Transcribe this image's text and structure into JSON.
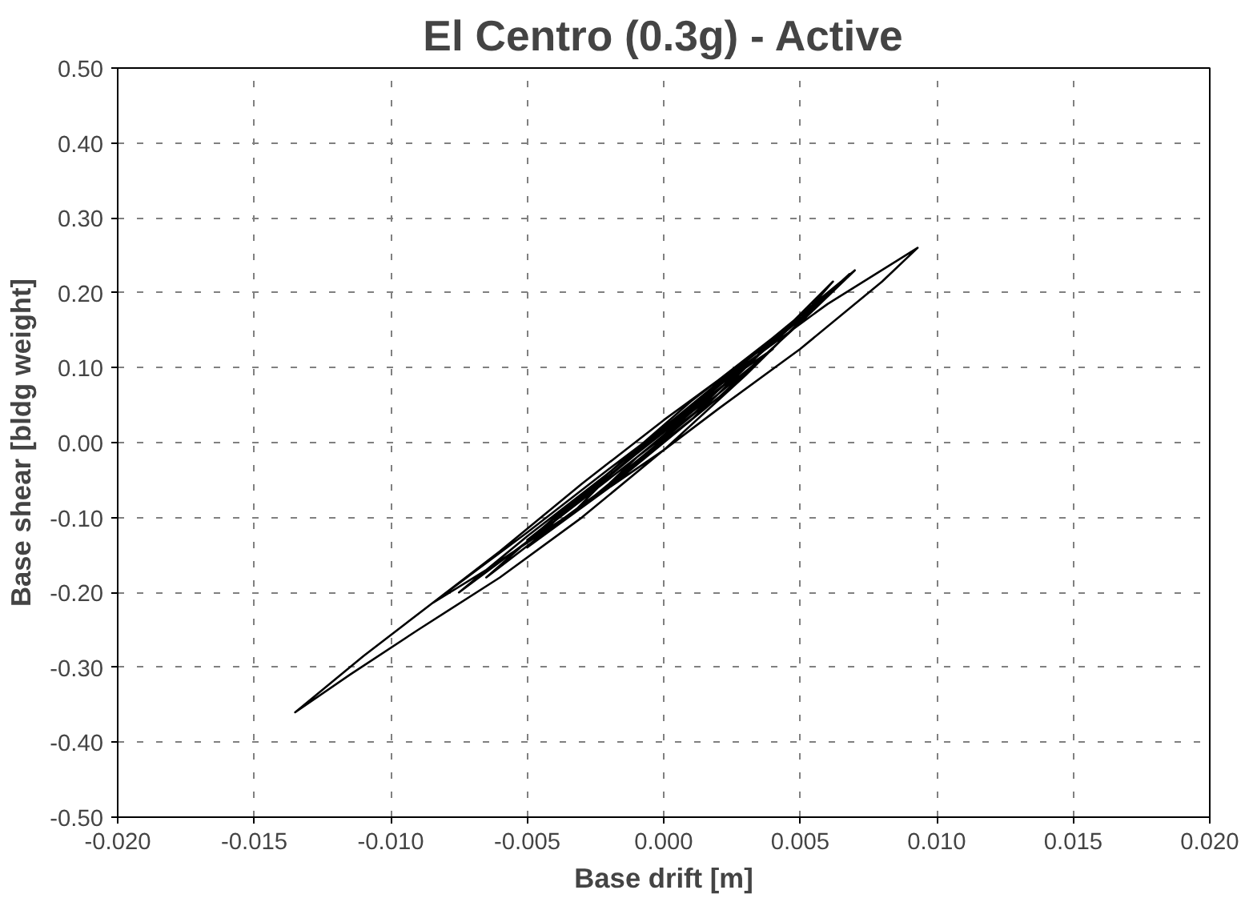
{
  "chart_data": {
    "type": "line",
    "title": "El Centro (0.3g) - Active",
    "xlabel": "Base drift [m]",
    "ylabel": "Base shear [bldg weight]",
    "xlim": [
      -0.02,
      0.02
    ],
    "ylim": [
      -0.5,
      0.5
    ],
    "xticks": [
      {
        "value": -0.02,
        "label": "-0.020"
      },
      {
        "value": -0.015,
        "label": "-0.015"
      },
      {
        "value": -0.01,
        "label": "-0.010"
      },
      {
        "value": -0.005,
        "label": "-0.005"
      },
      {
        "value": 0,
        "label": "0.000"
      },
      {
        "value": 0.005,
        "label": "0.005"
      },
      {
        "value": 0.01,
        "label": "0.010"
      },
      {
        "value": 0.015,
        "label": "0.015"
      },
      {
        "value": 0.02,
        "label": "0.020"
      }
    ],
    "yticks": [
      {
        "value": -0.5,
        "label": "-0.50"
      },
      {
        "value": -0.4,
        "label": "-0.40"
      },
      {
        "value": -0.3,
        "label": "-0.30"
      },
      {
        "value": -0.2,
        "label": "-0.20"
      },
      {
        "value": -0.1,
        "label": "-0.10"
      },
      {
        "value": 0,
        "label": "0.00"
      },
      {
        "value": 0.1,
        "label": "0.10"
      },
      {
        "value": 0.2,
        "label": "0.20"
      },
      {
        "value": 0.3,
        "label": "0.30"
      },
      {
        "value": 0.4,
        "label": "0.40"
      },
      {
        "value": 0.5,
        "label": "0.50"
      }
    ],
    "grid": true,
    "marker": "none",
    "line_style": "solid",
    "series": [
      {
        "color": "#000000",
        "x": [
          0,
          0.002,
          0.0015,
          -0.0025,
          -0.002,
          0.004,
          0.003,
          -0.005,
          -0.004,
          0.006,
          0.0055,
          0.003,
          0,
          -0.003,
          -0.006,
          -0.009,
          -0.0115,
          -0.0135,
          -0.011,
          -0.0085,
          -0.005,
          -0.002,
          0,
          0.003,
          0.006,
          0.0093,
          0.008,
          0.005,
          0.002,
          0,
          -0.003,
          -0.0065,
          -0.0085,
          -0.006,
          -0.003,
          0,
          0.003,
          0.0055,
          0.0068,
          0.005,
          0.002,
          -0.001,
          -0.004,
          -0.0075,
          -0.005,
          -0.002,
          0.001,
          0.004,
          0.007,
          0.005,
          0.002,
          -0.001,
          -0.004,
          -0.0065,
          -0.004,
          -0.001,
          0.002,
          0.005,
          0.0062,
          0.004,
          0.001,
          -0.002,
          -0.005,
          -0.003,
          0,
          0.003,
          0.0045,
          0.002,
          -0.001,
          -0.0035,
          -0.002,
          0.001,
          0.003,
          0.001,
          -0.002,
          -0.001,
          0.0015,
          0
        ],
        "values": [
          0,
          0.06,
          0.045,
          -0.07,
          -0.055,
          0.125,
          0.1,
          -0.13,
          -0.105,
          0.2,
          0.18,
          0.09,
          -0.01,
          -0.1,
          -0.18,
          -0.25,
          -0.31,
          -0.36,
          -0.285,
          -0.215,
          -0.12,
          -0.035,
          0.02,
          0.105,
          0.185,
          0.26,
          0.215,
          0.125,
          0.045,
          -0.01,
          -0.085,
          -0.17,
          -0.215,
          -0.145,
          -0.055,
          0.03,
          0.11,
          0.18,
          0.225,
          0.165,
          0.07,
          -0.02,
          -0.105,
          -0.2,
          -0.125,
          -0.04,
          0.055,
          0.14,
          0.23,
          0.16,
          0.06,
          -0.03,
          -0.11,
          -0.18,
          -0.1,
          -0.01,
          0.08,
          0.165,
          0.215,
          0.135,
          0.03,
          -0.06,
          -0.14,
          -0.07,
          0.02,
          0.11,
          0.155,
          0.065,
          -0.025,
          -0.1,
          -0.045,
          0.045,
          0.105,
          0.035,
          -0.055,
          -0.02,
          0.05,
          0.005
        ]
      }
    ]
  }
}
